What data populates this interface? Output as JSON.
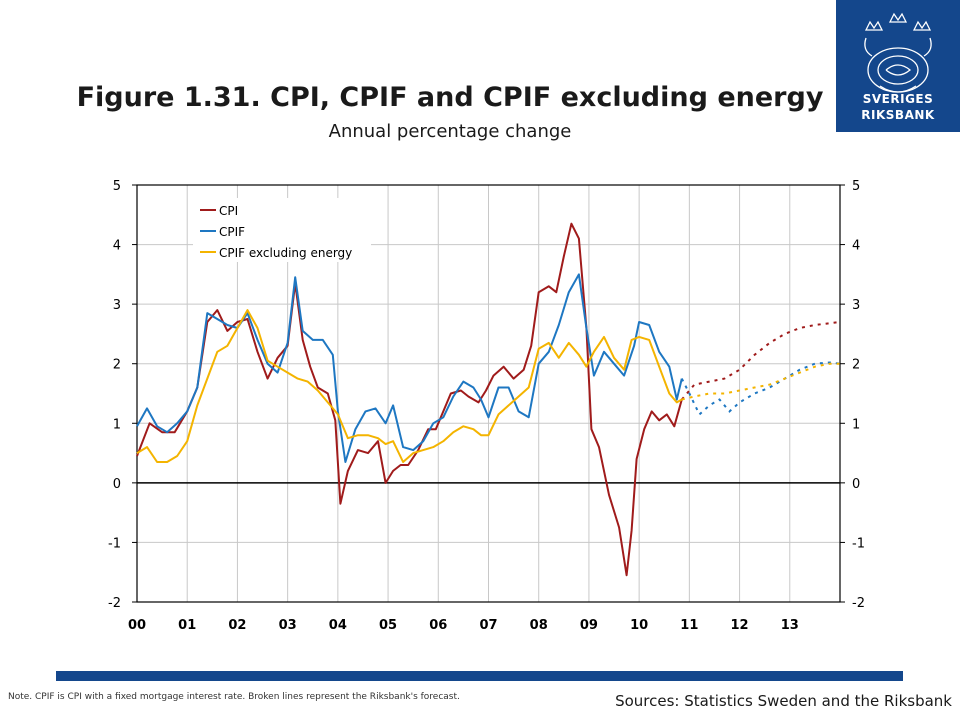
{
  "header": {
    "title": "Figure 1.31. CPI, CPIF and CPIF excluding energy",
    "subtitle": "Annual percentage change"
  },
  "logo": {
    "line1": "SVERIGES",
    "line2": "RIKSBANK",
    "color": "#14478c"
  },
  "footer": {
    "note": "Note. CPIF is CPI with a fixed mortgage interest rate. Broken lines represent the Riksbank's forecast.",
    "source": "Sources: Statistics Sweden and the Riksbank",
    "bar_color": "#14478c"
  },
  "chart_data": {
    "type": "line",
    "xlim": [
      2000,
      2014
    ],
    "ylim": [
      -2,
      5
    ],
    "yticks": [
      -2,
      -1,
      0,
      1,
      2,
      3,
      4,
      5
    ],
    "ytick_labels": [
      "-2",
      "-1",
      "0",
      "1",
      "2",
      "3",
      "4",
      "5"
    ],
    "xtick_labels": [
      "00",
      "01",
      "02",
      "03",
      "04",
      "05",
      "06",
      "07",
      "08",
      "09",
      "10",
      "11",
      "12",
      "13"
    ],
    "xtick_positions": [
      2000,
      2001,
      2002,
      2003,
      2004,
      2005,
      2006,
      2007,
      2008,
      2009,
      2010,
      2011,
      2012,
      2013
    ],
    "grid": true,
    "legend_position": "top-left",
    "forecast_start": 2010.85,
    "series": [
      {
        "name": "CPI",
        "color": "#a01b1b",
        "actual": [
          [
            2000.0,
            0.45
          ],
          [
            2000.25,
            1.0
          ],
          [
            2000.5,
            0.85
          ],
          [
            2000.75,
            0.85
          ],
          [
            2001.0,
            1.2
          ],
          [
            2001.2,
            1.6
          ],
          [
            2001.4,
            2.7
          ],
          [
            2001.6,
            2.9
          ],
          [
            2001.8,
            2.55
          ],
          [
            2002.0,
            2.7
          ],
          [
            2002.2,
            2.75
          ],
          [
            2002.4,
            2.2
          ],
          [
            2002.6,
            1.75
          ],
          [
            2002.8,
            2.1
          ],
          [
            2003.0,
            2.3
          ],
          [
            2003.15,
            3.35
          ],
          [
            2003.3,
            2.4
          ],
          [
            2003.45,
            1.95
          ],
          [
            2003.6,
            1.6
          ],
          [
            2003.8,
            1.5
          ],
          [
            2003.95,
            1.05
          ],
          [
            2004.05,
            -0.35
          ],
          [
            2004.2,
            0.2
          ],
          [
            2004.4,
            0.55
          ],
          [
            2004.6,
            0.5
          ],
          [
            2004.8,
            0.7
          ],
          [
            2004.95,
            0.0
          ],
          [
            2005.1,
            0.2
          ],
          [
            2005.25,
            0.3
          ],
          [
            2005.4,
            0.3
          ],
          [
            2005.6,
            0.55
          ],
          [
            2005.8,
            0.9
          ],
          [
            2005.95,
            0.9
          ],
          [
            2006.1,
            1.2
          ],
          [
            2006.25,
            1.5
          ],
          [
            2006.45,
            1.55
          ],
          [
            2006.6,
            1.45
          ],
          [
            2006.8,
            1.35
          ],
          [
            2006.95,
            1.55
          ],
          [
            2007.1,
            1.8
          ],
          [
            2007.3,
            1.95
          ],
          [
            2007.5,
            1.75
          ],
          [
            2007.7,
            1.9
          ],
          [
            2007.85,
            2.3
          ],
          [
            2008.0,
            3.2
          ],
          [
            2008.2,
            3.3
          ],
          [
            2008.35,
            3.2
          ],
          [
            2008.5,
            3.8
          ],
          [
            2008.65,
            4.35
          ],
          [
            2008.8,
            4.1
          ],
          [
            2008.95,
            2.6
          ],
          [
            2009.05,
            0.9
          ],
          [
            2009.2,
            0.6
          ],
          [
            2009.4,
            -0.2
          ],
          [
            2009.6,
            -0.75
          ],
          [
            2009.75,
            -1.55
          ],
          [
            2009.85,
            -0.8
          ],
          [
            2009.95,
            0.4
          ],
          [
            2010.1,
            0.9
          ],
          [
            2010.25,
            1.2
          ],
          [
            2010.4,
            1.05
          ],
          [
            2010.55,
            1.15
          ],
          [
            2010.7,
            0.95
          ],
          [
            2010.85,
            1.4
          ]
        ],
        "forecast": [
          [
            2010.85,
            1.4
          ],
          [
            2011.1,
            1.65
          ],
          [
            2011.4,
            1.7
          ],
          [
            2011.7,
            1.75
          ],
          [
            2012.0,
            1.9
          ],
          [
            2012.3,
            2.15
          ],
          [
            2012.6,
            2.35
          ],
          [
            2012.9,
            2.5
          ],
          [
            2013.2,
            2.6
          ],
          [
            2013.5,
            2.65
          ],
          [
            2013.8,
            2.68
          ],
          [
            2014.0,
            2.7
          ]
        ]
      },
      {
        "name": "CPIF",
        "color": "#1e77c2",
        "actual": [
          [
            2000.0,
            0.95
          ],
          [
            2000.2,
            1.25
          ],
          [
            2000.4,
            0.95
          ],
          [
            2000.6,
            0.85
          ],
          [
            2000.8,
            1.0
          ],
          [
            2001.0,
            1.2
          ],
          [
            2001.2,
            1.6
          ],
          [
            2001.4,
            2.85
          ],
          [
            2001.6,
            2.75
          ],
          [
            2001.8,
            2.65
          ],
          [
            2002.0,
            2.6
          ],
          [
            2002.2,
            2.85
          ],
          [
            2002.4,
            2.4
          ],
          [
            2002.6,
            2.0
          ],
          [
            2002.8,
            1.85
          ],
          [
            2003.0,
            2.35
          ],
          [
            2003.15,
            3.45
          ],
          [
            2003.3,
            2.55
          ],
          [
            2003.5,
            2.4
          ],
          [
            2003.7,
            2.4
          ],
          [
            2003.9,
            2.15
          ],
          [
            2004.0,
            1.2
          ],
          [
            2004.15,
            0.35
          ],
          [
            2004.35,
            0.9
          ],
          [
            2004.55,
            1.2
          ],
          [
            2004.75,
            1.25
          ],
          [
            2004.95,
            1.0
          ],
          [
            2005.1,
            1.3
          ],
          [
            2005.3,
            0.6
          ],
          [
            2005.5,
            0.55
          ],
          [
            2005.7,
            0.7
          ],
          [
            2005.9,
            1.0
          ],
          [
            2006.1,
            1.1
          ],
          [
            2006.3,
            1.45
          ],
          [
            2006.5,
            1.7
          ],
          [
            2006.7,
            1.6
          ],
          [
            2006.85,
            1.4
          ],
          [
            2007.0,
            1.1
          ],
          [
            2007.2,
            1.6
          ],
          [
            2007.4,
            1.6
          ],
          [
            2007.6,
            1.2
          ],
          [
            2007.8,
            1.1
          ],
          [
            2008.0,
            2.0
          ],
          [
            2008.2,
            2.2
          ],
          [
            2008.4,
            2.65
          ],
          [
            2008.6,
            3.2
          ],
          [
            2008.8,
            3.5
          ],
          [
            2008.95,
            2.6
          ],
          [
            2009.1,
            1.8
          ],
          [
            2009.3,
            2.2
          ],
          [
            2009.5,
            2.0
          ],
          [
            2009.7,
            1.8
          ],
          [
            2009.9,
            2.3
          ],
          [
            2010.0,
            2.7
          ],
          [
            2010.2,
            2.65
          ],
          [
            2010.4,
            2.2
          ],
          [
            2010.6,
            1.95
          ],
          [
            2010.75,
            1.4
          ],
          [
            2010.85,
            1.75
          ]
        ],
        "forecast": [
          [
            2010.85,
            1.75
          ],
          [
            2011.0,
            1.5
          ],
          [
            2011.2,
            1.15
          ],
          [
            2011.4,
            1.3
          ],
          [
            2011.6,
            1.4
          ],
          [
            2011.8,
            1.2
          ],
          [
            2012.0,
            1.35
          ],
          [
            2012.3,
            1.5
          ],
          [
            2012.6,
            1.6
          ],
          [
            2012.9,
            1.75
          ],
          [
            2013.2,
            1.9
          ],
          [
            2013.5,
            2.0
          ],
          [
            2013.8,
            2.02
          ],
          [
            2014.0,
            2.0
          ]
        ]
      },
      {
        "name": "CPIF excluding energy",
        "color": "#f4b400",
        "actual": [
          [
            2000.0,
            0.5
          ],
          [
            2000.2,
            0.6
          ],
          [
            2000.4,
            0.35
          ],
          [
            2000.6,
            0.35
          ],
          [
            2000.8,
            0.45
          ],
          [
            2001.0,
            0.7
          ],
          [
            2001.2,
            1.3
          ],
          [
            2001.4,
            1.75
          ],
          [
            2001.6,
            2.2
          ],
          [
            2001.8,
            2.3
          ],
          [
            2002.0,
            2.6
          ],
          [
            2002.2,
            2.9
          ],
          [
            2002.4,
            2.6
          ],
          [
            2002.6,
            2.05
          ],
          [
            2002.8,
            1.95
          ],
          [
            2003.0,
            1.85
          ],
          [
            2003.2,
            1.75
          ],
          [
            2003.4,
            1.7
          ],
          [
            2003.6,
            1.55
          ],
          [
            2003.8,
            1.35
          ],
          [
            2004.0,
            1.15
          ],
          [
            2004.2,
            0.75
          ],
          [
            2004.4,
            0.8
          ],
          [
            2004.6,
            0.8
          ],
          [
            2004.8,
            0.75
          ],
          [
            2004.95,
            0.65
          ],
          [
            2005.1,
            0.7
          ],
          [
            2005.3,
            0.35
          ],
          [
            2005.5,
            0.5
          ],
          [
            2005.7,
            0.55
          ],
          [
            2005.9,
            0.6
          ],
          [
            2006.1,
            0.7
          ],
          [
            2006.3,
            0.85
          ],
          [
            2006.5,
            0.95
          ],
          [
            2006.7,
            0.9
          ],
          [
            2006.85,
            0.8
          ],
          [
            2007.0,
            0.8
          ],
          [
            2007.2,
            1.15
          ],
          [
            2007.4,
            1.3
          ],
          [
            2007.6,
            1.45
          ],
          [
            2007.8,
            1.6
          ],
          [
            2008.0,
            2.25
          ],
          [
            2008.2,
            2.35
          ],
          [
            2008.4,
            2.1
          ],
          [
            2008.6,
            2.35
          ],
          [
            2008.8,
            2.15
          ],
          [
            2008.95,
            1.95
          ],
          [
            2009.1,
            2.2
          ],
          [
            2009.3,
            2.45
          ],
          [
            2009.5,
            2.1
          ],
          [
            2009.7,
            1.9
          ],
          [
            2009.85,
            2.4
          ],
          [
            2010.0,
            2.45
          ],
          [
            2010.2,
            2.4
          ],
          [
            2010.4,
            1.95
          ],
          [
            2010.6,
            1.5
          ],
          [
            2010.75,
            1.35
          ],
          [
            2010.85,
            1.4
          ]
        ],
        "forecast": [
          [
            2010.85,
            1.4
          ],
          [
            2011.1,
            1.45
          ],
          [
            2011.4,
            1.5
          ],
          [
            2011.7,
            1.5
          ],
          [
            2012.0,
            1.55
          ],
          [
            2012.3,
            1.6
          ],
          [
            2012.6,
            1.65
          ],
          [
            2012.9,
            1.75
          ],
          [
            2013.2,
            1.85
          ],
          [
            2013.5,
            1.95
          ],
          [
            2013.8,
            2.0
          ],
          [
            2014.0,
            2.0
          ]
        ]
      }
    ]
  }
}
